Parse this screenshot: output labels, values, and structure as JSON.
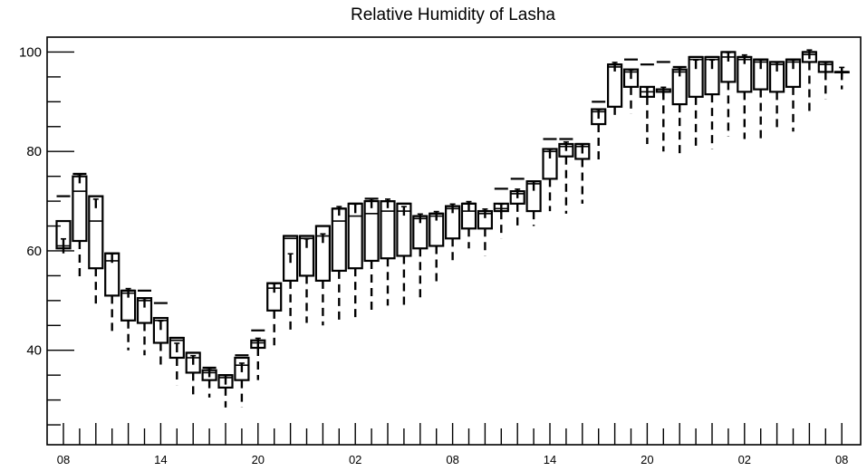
{
  "chart_data": {
    "type": "box",
    "title": "Relative Humidity of Lasha",
    "xlabel": "",
    "ylabel": "",
    "ylim": [
      21,
      103
    ],
    "y_ticks": [
      40,
      60,
      80,
      100
    ],
    "x_tick_labels": [
      "08",
      "14",
      "20",
      "02",
      "08",
      "14",
      "20",
      "02",
      "08"
    ],
    "grid": false,
    "color": "#000000",
    "boxes": [
      {
        "x": 0,
        "min": 59.5,
        "q1": 60.5,
        "median": 61.0,
        "q3": 66.0,
        "max": 71.0,
        "mean": 61.5
      },
      {
        "x": 1,
        "min": 54.5,
        "q1": 62.0,
        "median": 72.0,
        "q3": 75.0,
        "max": 75.5,
        "mean": 74.5
      },
      {
        "x": 2,
        "min": 48.5,
        "q1": 56.5,
        "median": 66.0,
        "q3": 71.0,
        "max": 71.0,
        "mean": 69.5
      },
      {
        "x": 3,
        "min": 43.5,
        "q1": 51.0,
        "median": 58.0,
        "q3": 59.5,
        "max": 59.5,
        "mean": 58.5
      },
      {
        "x": 4,
        "min": 40.0,
        "q1": 46.0,
        "median": 51.5,
        "q3": 52.0,
        "max": 52.0,
        "mean": 51.5
      },
      {
        "x": 5,
        "min": 39.0,
        "q1": 45.5,
        "median": 50.0,
        "q3": 50.5,
        "max": 52.0,
        "mean": 49.5
      },
      {
        "x": 6,
        "min": 36.5,
        "q1": 41.5,
        "median": 46.0,
        "q3": 46.5,
        "max": 49.5,
        "mean": 45.0
      },
      {
        "x": 7,
        "min": 33.0,
        "q1": 38.5,
        "median": 42.0,
        "q3": 42.5,
        "max": 42.5,
        "mean": 40.5
      },
      {
        "x": 8,
        "min": 31.0,
        "q1": 35.5,
        "median": 38.5,
        "q3": 39.5,
        "max": 39.5,
        "mean": 38.0
      },
      {
        "x": 9,
        "min": 30.5,
        "q1": 34.0,
        "median": 35.5,
        "q3": 36.0,
        "max": 36.5,
        "mean": 35.5
      },
      {
        "x": 10,
        "min": 28.5,
        "q1": 32.5,
        "median": 34.5,
        "q3": 35.0,
        "max": 35.0,
        "mean": 34.0
      },
      {
        "x": 11,
        "min": 28.5,
        "q1": 34.0,
        "median": 37.0,
        "q3": 38.5,
        "max": 39.0,
        "mean": 36.5
      },
      {
        "x": 12,
        "min": 34.0,
        "q1": 40.5,
        "median": 41.5,
        "q3": 42.0,
        "max": 44.0,
        "mean": 41.5
      },
      {
        "x": 13,
        "min": 41.0,
        "q1": 48.0,
        "median": 52.5,
        "q3": 53.5,
        "max": 53.5,
        "mean": 52.5
      },
      {
        "x": 14,
        "min": 43.5,
        "q1": 54.0,
        "median": 62.5,
        "q3": 63.0,
        "max": 63.0,
        "mean": 58.5
      },
      {
        "x": 15,
        "min": 45.5,
        "q1": 55.0,
        "median": 62.5,
        "q3": 63.0,
        "max": 63.0,
        "mean": 61.5
      },
      {
        "x": 16,
        "min": 45.0,
        "q1": 54.0,
        "median": 63.0,
        "q3": 65.0,
        "max": 65.0,
        "mean": 62.5
      },
      {
        "x": 17,
        "min": 45.5,
        "q1": 56.0,
        "median": 66.0,
        "q3": 68.5,
        "max": 68.5,
        "mean": 68.0
      },
      {
        "x": 18,
        "min": 46.0,
        "q1": 56.5,
        "median": 67.0,
        "q3": 69.5,
        "max": 69.5,
        "mean": 68.5
      },
      {
        "x": 19,
        "min": 48.0,
        "q1": 58.0,
        "median": 67.5,
        "q3": 70.0,
        "max": 70.5,
        "mean": 69.5
      },
      {
        "x": 20,
        "min": 49.0,
        "q1": 58.5,
        "median": 68.0,
        "q3": 70.0,
        "max": 70.0,
        "mean": 69.5
      },
      {
        "x": 21,
        "min": 49.0,
        "q1": 59.0,
        "median": 68.0,
        "q3": 69.5,
        "max": 69.5,
        "mean": 68.0
      },
      {
        "x": 22,
        "min": 50.0,
        "q1": 60.5,
        "median": 66.5,
        "q3": 67.0,
        "max": 67.0,
        "mean": 66.5
      },
      {
        "x": 23,
        "min": 53.0,
        "q1": 61.0,
        "median": 67.0,
        "q3": 67.5,
        "max": 67.5,
        "mean": 67.0
      },
      {
        "x": 24,
        "min": 57.5,
        "q1": 62.5,
        "median": 68.5,
        "q3": 69.0,
        "max": 69.0,
        "mean": 68.5
      },
      {
        "x": 25,
        "min": 60.5,
        "q1": 64.5,
        "median": 68.0,
        "q3": 69.5,
        "max": 69.5,
        "mean": 69.0
      },
      {
        "x": 26,
        "min": 59.0,
        "q1": 64.5,
        "median": 67.5,
        "q3": 68.0,
        "max": 68.0,
        "mean": 67.5
      },
      {
        "x": 27,
        "min": 62.5,
        "q1": 68.0,
        "median": 68.5,
        "q3": 69.5,
        "max": 72.5,
        "mean": 68.5
      },
      {
        "x": 28,
        "min": 65.0,
        "q1": 69.5,
        "median": 71.5,
        "q3": 72.0,
        "max": 74.5,
        "mean": 71.5
      },
      {
        "x": 29,
        "min": 65.0,
        "q1": 68.0,
        "median": 73.5,
        "q3": 74.0,
        "max": 74.0,
        "mean": 73.0
      },
      {
        "x": 30,
        "min": 68.0,
        "q1": 74.5,
        "median": 80.0,
        "q3": 80.5,
        "max": 82.5,
        "mean": 79.5
      },
      {
        "x": 31,
        "min": 67.5,
        "q1": 79.0,
        "median": 81.0,
        "q3": 81.5,
        "max": 82.5,
        "mean": 81.0
      },
      {
        "x": 32,
        "min": 69.5,
        "q1": 78.5,
        "median": 81.0,
        "q3": 81.5,
        "max": 81.5,
        "mean": 80.5
      },
      {
        "x": 33,
        "min": 77.5,
        "q1": 85.5,
        "median": 88.0,
        "q3": 88.5,
        "max": 90.0,
        "mean": 87.5
      },
      {
        "x": 34,
        "min": 86.5,
        "q1": 89.0,
        "median": 97.0,
        "q3": 97.5,
        "max": 97.5,
        "mean": 97.0
      },
      {
        "x": 35,
        "min": 87.5,
        "q1": 93.0,
        "median": 96.0,
        "q3": 96.5,
        "max": 98.5,
        "mean": 95.5
      },
      {
        "x": 36,
        "min": 81.5,
        "q1": 91.0,
        "median": 92.0,
        "q3": 93.0,
        "max": 97.5,
        "mean": 92.0
      },
      {
        "x": 37,
        "min": 80.0,
        "q1": 92.0,
        "median": 92.0,
        "q3": 92.5,
        "max": 98.0,
        "mean": 92.0
      },
      {
        "x": 38,
        "min": 79.0,
        "q1": 89.5,
        "median": 96.0,
        "q3": 96.5,
        "max": 97.0,
        "mean": 96.0
      },
      {
        "x": 39,
        "min": 80.5,
        "q1": 91.0,
        "median": 98.5,
        "q3": 99.0,
        "max": 99.0,
        "mean": 97.5
      },
      {
        "x": 40,
        "min": 80.5,
        "q1": 91.5,
        "median": 98.5,
        "q3": 99.0,
        "max": 99.0,
        "mean": 97.5
      },
      {
        "x": 41,
        "min": 83.0,
        "q1": 94.0,
        "median": 99.0,
        "q3": 100.0,
        "max": 100.0,
        "mean": 99.0
      },
      {
        "x": 42,
        "min": 82.5,
        "q1": 92.0,
        "median": 98.5,
        "q3": 99.0,
        "max": 99.0,
        "mean": 98.5
      },
      {
        "x": 43,
        "min": 82.0,
        "q1": 92.5,
        "median": 98.0,
        "q3": 98.5,
        "max": 98.5,
        "mean": 97.5
      },
      {
        "x": 44,
        "min": 84.0,
        "q1": 92.0,
        "median": 97.5,
        "q3": 98.0,
        "max": 98.0,
        "mean": 97.0
      },
      {
        "x": 45,
        "min": 84.0,
        "q1": 93.0,
        "median": 98.0,
        "q3": 98.5,
        "max": 98.5,
        "mean": 97.5
      },
      {
        "x": 46,
        "min": 88.0,
        "q1": 98.0,
        "median": 99.5,
        "q3": 100.0,
        "max": 100.0,
        "mean": 99.5
      },
      {
        "x": 47,
        "min": 90.5,
        "q1": 96.0,
        "median": 97.5,
        "q3": 98.0,
        "max": 98.0,
        "mean": 97.0
      },
      {
        "x": 48,
        "min": 92.5,
        "q1": 96.0,
        "median": 96.0,
        "q3": 96.0,
        "max": 96.0,
        "mean": 96.0
      }
    ]
  }
}
